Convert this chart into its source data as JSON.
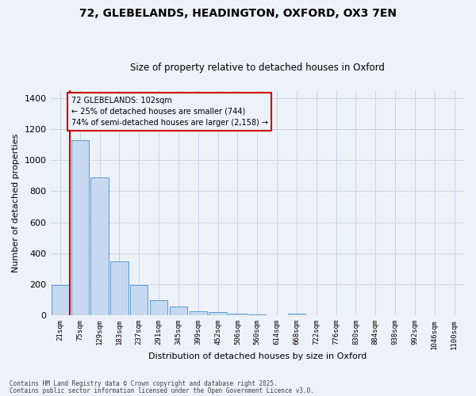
{
  "title_line1": "72, GLEBELANDS, HEADINGTON, OXFORD, OX3 7EN",
  "title_line2": "Size of property relative to detached houses in Oxford",
  "xlabel": "Distribution of detached houses by size in Oxford",
  "ylabel": "Number of detached properties",
  "categories": [
    "21sqm",
    "75sqm",
    "129sqm",
    "183sqm",
    "237sqm",
    "291sqm",
    "345sqm",
    "399sqm",
    "452sqm",
    "506sqm",
    "560sqm",
    "614sqm",
    "668sqm",
    "722sqm",
    "776sqm",
    "830sqm",
    "884sqm",
    "938sqm",
    "992sqm",
    "1046sqm",
    "1100sqm"
  ],
  "values": [
    195,
    1130,
    890,
    350,
    195,
    100,
    60,
    25,
    22,
    14,
    5,
    0,
    10,
    0,
    0,
    0,
    0,
    0,
    0,
    0,
    0
  ],
  "bar_color": "#c6d9f0",
  "bar_edge_color": "#5b9bd5",
  "grid_color": "#c8d4e4",
  "background_color": "#edf2f8",
  "vline_x": 0.5,
  "vline_color": "#cc0000",
  "annotation_text": "72 GLEBELANDS: 102sqm\n← 25% of detached houses are smaller (744)\n74% of semi-detached houses are larger (2,158) →",
  "annotation_box_edgecolor": "#cc0000",
  "ylim": [
    0,
    1450
  ],
  "yticks": [
    0,
    200,
    400,
    600,
    800,
    1000,
    1200,
    1400
  ],
  "footer_line1": "Contains HM Land Registry data © Crown copyright and database right 2025.",
  "footer_line2": "Contains public sector information licensed under the Open Government Licence v3.0."
}
